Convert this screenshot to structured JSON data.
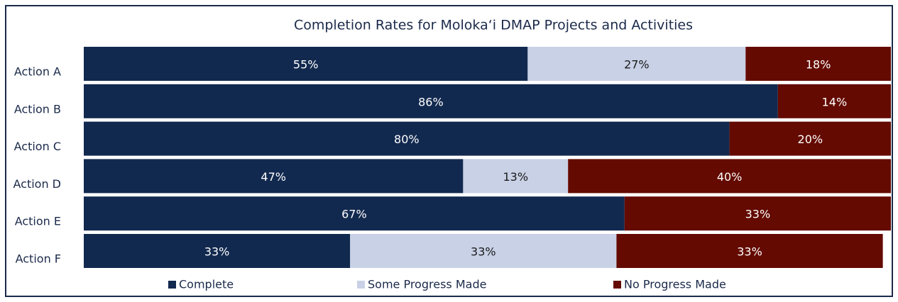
{
  "chart_data": {
    "type": "stacked-bar-horizontal",
    "title": "Completion Rates for Moloka‘i DMAP Projects and Activities",
    "categories": [
      "Action A",
      "Action B",
      "Action C",
      "Action D",
      "Action E",
      "Action F"
    ],
    "xlim": [
      0,
      100
    ],
    "legend": "bottom",
    "series": [
      {
        "name": "Complete",
        "color": "#12294f",
        "text_color": "#ffffff",
        "values": [
          55,
          86,
          80,
          47,
          67,
          33
        ],
        "value_labels": [
          "55%",
          "86%",
          "80%",
          "47%",
          "67%",
          "33%"
        ]
      },
      {
        "name": "Some Progress Made",
        "color": "#c9d1e6",
        "text_color": "#1a1a1a",
        "values": [
          27,
          null,
          null,
          13,
          null,
          33
        ],
        "value_labels": [
          "27%",
          null,
          null,
          "13%",
          null,
          "33%"
        ]
      },
      {
        "name": "No Progress Made",
        "color": "#640a00",
        "text_color": "#ffffff",
        "values": [
          18,
          14,
          20,
          40,
          33,
          33
        ],
        "value_labels": [
          "18%",
          "14%",
          "20%",
          "40%",
          "33%",
          "33%"
        ]
      }
    ]
  }
}
